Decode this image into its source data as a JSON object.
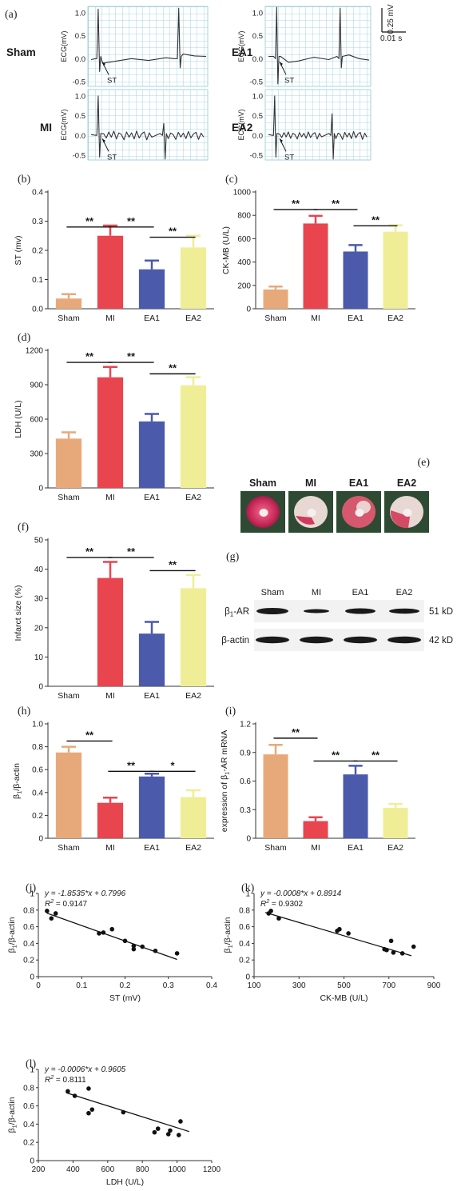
{
  "chart_data": [
    {
      "id": "a",
      "panel_label": "(a)",
      "type": "ecg",
      "scale_bar": {
        "y_label": "0.25 mV",
        "x_label": "0.01 s"
      },
      "traces": [
        {
          "name": "Sham",
          "ylabel": "ECG(mV)",
          "yticks": [
            "1.0",
            "0.5",
            "0.0",
            "-0.5"
          ],
          "st_label": "ST"
        },
        {
          "name": "EA1",
          "ylabel": "ECG(mV)",
          "yticks": [
            "1.0",
            "0.5",
            "0.0",
            "-0.5"
          ],
          "st_label": "ST"
        },
        {
          "name": "MI",
          "ylabel": "ECG(mV)",
          "yticks": [
            "1.0",
            "0.5",
            "0.0",
            "-0.5"
          ],
          "st_label": "ST"
        },
        {
          "name": "EA2",
          "ylabel": "ECG(mV)",
          "yticks": [
            "1.0",
            "0.5",
            "0.0",
            "-0.5"
          ],
          "st_label": "ST"
        }
      ]
    },
    {
      "id": "b",
      "panel_label": "(b)",
      "type": "bar",
      "categories": [
        "Sham",
        "MI",
        "EA1",
        "EA2"
      ],
      "values": [
        0.035,
        0.25,
        0.135,
        0.21
      ],
      "errors": [
        0.015,
        0.035,
        0.03,
        0.04
      ],
      "ylabel": "ST (mv)",
      "ylim": [
        0,
        0.4
      ],
      "yticks": [
        0,
        0.1,
        0.2,
        0.3,
        0.4
      ],
      "ytick_labels": [
        "0.0",
        "0.1",
        "0.2",
        "0.3",
        "0.4"
      ],
      "significance": [
        {
          "from": 0,
          "to": 1,
          "label": "**",
          "y": 0.28
        },
        {
          "from": 1,
          "to": 2,
          "label": "**",
          "y": 0.28
        },
        {
          "from": 2,
          "to": 3,
          "label": "**",
          "y": 0.245
        }
      ]
    },
    {
      "id": "c",
      "panel_label": "(c)",
      "type": "bar",
      "categories": [
        "Sham",
        "MI",
        "EA1",
        "EA2"
      ],
      "values": [
        165,
        730,
        490,
        660
      ],
      "errors": [
        25,
        65,
        55,
        55
      ],
      "ylabel": "CK-MB (U/L)",
      "ylim": [
        0,
        1000
      ],
      "yticks": [
        0,
        200,
        400,
        600,
        800,
        1000
      ],
      "ytick_labels": [
        "0",
        "200",
        "400",
        "600",
        "800",
        "1000"
      ],
      "significance": [
        {
          "from": 0,
          "to": 1,
          "label": "**",
          "y": 850
        },
        {
          "from": 1,
          "to": 2,
          "label": "**",
          "y": 850
        },
        {
          "from": 2,
          "to": 3,
          "label": "**",
          "y": 710
        }
      ]
    },
    {
      "id": "d",
      "panel_label": "(d)",
      "type": "bar",
      "categories": [
        "Sham",
        "MI",
        "EA1",
        "EA2"
      ],
      "values": [
        430,
        965,
        580,
        895
      ],
      "errors": [
        55,
        90,
        65,
        70
      ],
      "ylabel": "LDH (U/L)",
      "ylim": [
        0,
        1200
      ],
      "yticks": [
        0,
        300,
        600,
        900,
        1200
      ],
      "ytick_labels": [
        "0",
        "300",
        "600",
        "900",
        "1200"
      ],
      "significance": [
        {
          "from": 0,
          "to": 1,
          "label": "**",
          "y": 1095
        },
        {
          "from": 1,
          "to": 2,
          "label": "**",
          "y": 1095
        },
        {
          "from": 2,
          "to": 3,
          "label": "**",
          "y": 995
        }
      ]
    },
    {
      "id": "e",
      "panel_label": "(e)",
      "type": "image",
      "labels": [
        "Sham",
        "MI",
        "EA1",
        "EA2"
      ]
    },
    {
      "id": "f",
      "panel_label": "(f)",
      "type": "bar",
      "categories": [
        "Sham",
        "MI",
        "EA1",
        "EA2"
      ],
      "values": [
        0,
        37,
        18,
        33.5
      ],
      "errors": [
        0,
        5.5,
        4,
        4.5
      ],
      "ylabel": "Infarct size (%)",
      "ylim": [
        0,
        50
      ],
      "yticks": [
        0,
        10,
        20,
        30,
        40,
        50
      ],
      "ytick_labels": [
        "0",
        "10",
        "20",
        "30",
        "40",
        "50"
      ],
      "significance": [
        {
          "from": 0,
          "to": 1,
          "label": "**",
          "y": 44
        },
        {
          "from": 1,
          "to": 2,
          "label": "**",
          "y": 44
        },
        {
          "from": 2,
          "to": 3,
          "label": "**",
          "y": 39.5
        }
      ]
    },
    {
      "id": "g",
      "panel_label": "(g)",
      "type": "blot",
      "lanes": [
        "Sham",
        "MI",
        "EA1",
        "EA2"
      ],
      "rows": [
        {
          "label_base": "β",
          "label_sub": "1",
          "label_rest": "-AR",
          "kd": "51 kD"
        },
        {
          "label_base": "β-actin",
          "label_sub": "",
          "label_rest": "",
          "kd": "42 kD"
        }
      ]
    },
    {
      "id": "h",
      "panel_label": "(h)",
      "type": "bar",
      "categories": [
        "Sham",
        "MI",
        "EA1",
        "EA2"
      ],
      "values": [
        0.75,
        0.31,
        0.54,
        0.36
      ],
      "errors": [
        0.05,
        0.045,
        0.025,
        0.06
      ],
      "ylabel_base": "β",
      "ylabel_sub": "1",
      "ylabel_rest": "/β-actin",
      "ylim": [
        0,
        1.0
      ],
      "yticks": [
        0,
        0.2,
        0.4,
        0.6,
        0.8,
        1.0
      ],
      "ytick_labels": [
        "0",
        "0.2",
        "0.4",
        "0.6",
        "0.8",
        "1.0"
      ],
      "significance": [
        {
          "from": 0,
          "to": 1,
          "label": "**",
          "y": 0.85
        },
        {
          "from": 1,
          "to": 2,
          "label": "**",
          "y": 0.585
        },
        {
          "from": 2,
          "to": 3,
          "label": "*",
          "y": 0.585
        }
      ]
    },
    {
      "id": "i",
      "panel_label": "(i)",
      "type": "bar",
      "categories": [
        "Sham",
        "MI",
        "EA1",
        "EA2"
      ],
      "values": [
        0.88,
        0.18,
        0.67,
        0.32
      ],
      "errors": [
        0.1,
        0.04,
        0.09,
        0.04
      ],
      "ylabel_base": "expression of β",
      "ylabel_sub": "1",
      "ylabel_rest": "-AR mRNA",
      "ylim": [
        0,
        1.2
      ],
      "yticks": [
        0,
        0.3,
        0.6,
        0.9,
        1.2
      ],
      "ytick_labels": [
        "0",
        "0.3",
        "0.6",
        "0.9",
        "1.2"
      ],
      "significance": [
        {
          "from": 0,
          "to": 1,
          "label": "**",
          "y": 1.05
        },
        {
          "from": 1,
          "to": 2,
          "label": "**",
          "y": 0.81
        },
        {
          "from": 2,
          "to": 3,
          "label": "**",
          "y": 0.81
        }
      ]
    },
    {
      "id": "j",
      "panel_label": "(j)",
      "type": "scatter",
      "x": [
        0.02,
        0.03,
        0.04,
        0.14,
        0.15,
        0.17,
        0.2,
        0.22,
        0.22,
        0.24,
        0.27,
        0.32
      ],
      "y": [
        0.79,
        0.7,
        0.76,
        0.52,
        0.53,
        0.57,
        0.43,
        0.33,
        0.37,
        0.36,
        0.31,
        0.28
      ],
      "fit": {
        "slope": -1.8535,
        "intercept": 0.7996,
        "x_range": [
          0.02,
          0.32
        ]
      },
      "equation": "y = -1.8535*x + 0.7996",
      "r2_label": "R",
      "r2_value": " = 0.9147",
      "xlabel": "ST (mV)",
      "ylabel_base": "β",
      "ylabel_sub": "1",
      "ylabel_rest": "/β-actin",
      "xlim": [
        0,
        0.4
      ],
      "ylim": [
        0,
        1
      ],
      "xticks": [
        0,
        0.1,
        0.2,
        0.3,
        0.4
      ],
      "xtick_labels": [
        "0",
        "0.1",
        "0.2",
        "0.3",
        "0.4"
      ],
      "yticks": [
        0,
        0.2,
        0.4,
        0.6,
        0.8,
        1
      ],
      "ytick_labels": [
        "0",
        "0.2",
        "0.4",
        "0.6",
        "0.8",
        "1"
      ]
    },
    {
      "id": "k",
      "panel_label": "(k)",
      "type": "scatter",
      "x": [
        165,
        175,
        210,
        470,
        480,
        520,
        680,
        690,
        710,
        720,
        760,
        810
      ],
      "y": [
        0.76,
        0.79,
        0.7,
        0.55,
        0.57,
        0.52,
        0.33,
        0.32,
        0.43,
        0.29,
        0.28,
        0.36
      ],
      "fit": {
        "slope": -0.0008,
        "intercept": 0.8914,
        "x_range": [
          150,
          800
        ]
      },
      "equation": "y = -0.0008*x + 0.8914",
      "r2_label": "R",
      "r2_value": " = 0.9302",
      "xlabel": "CK-MB (U/L)",
      "ylabel_base": "β",
      "ylabel_sub": "1",
      "ylabel_rest": "/β-actin",
      "xlim": [
        100,
        900
      ],
      "ylim": [
        0,
        1
      ],
      "xticks": [
        100,
        300,
        500,
        700,
        900
      ],
      "xtick_labels": [
        "100",
        "300",
        "500",
        "700",
        "900"
      ],
      "yticks": [
        0,
        0.2,
        0.4,
        0.6,
        0.8,
        1
      ],
      "ytick_labels": [
        "0",
        "0.2",
        "0.4",
        "0.6",
        "0.8",
        "1"
      ]
    },
    {
      "id": "l",
      "panel_label": "(l)",
      "type": "scatter",
      "x": [
        370,
        410,
        490,
        490,
        510,
        690,
        870,
        890,
        950,
        960,
        1010,
        1020
      ],
      "y": [
        0.76,
        0.71,
        0.79,
        0.52,
        0.56,
        0.53,
        0.31,
        0.35,
        0.29,
        0.33,
        0.28,
        0.43
      ],
      "fit": {
        "slope": -0.0006,
        "intercept": 0.9605,
        "x_range": [
          360,
          1070
        ]
      },
      "equation": "y = -0.0006*x + 0.9605",
      "r2_label": "R",
      "r2_value": " = 0.8111",
      "xlabel": "LDH (U/L)",
      "ylabel_base": "β",
      "ylabel_sub": "1",
      "ylabel_rest": "/β-actin",
      "xlim": [
        200,
        1200
      ],
      "ylim": [
        0,
        1
      ],
      "xticks": [
        200,
        400,
        600,
        800,
        1000,
        1200
      ],
      "xtick_labels": [
        "200",
        "400",
        "600",
        "800",
        "1000",
        "1200"
      ],
      "yticks": [
        0,
        0.2,
        0.4,
        0.6,
        0.8,
        1
      ],
      "ytick_labels": [
        "0",
        "0.2",
        "0.4",
        "0.6",
        "0.8",
        "1"
      ]
    }
  ],
  "colors": {
    "Sham": "#e8a97a",
    "MI": "#e8454f",
    "EA1": "#4b5aaa",
    "EA2": "#efee96",
    "grid": "#8fcbd6",
    "trace": "#333333"
  }
}
